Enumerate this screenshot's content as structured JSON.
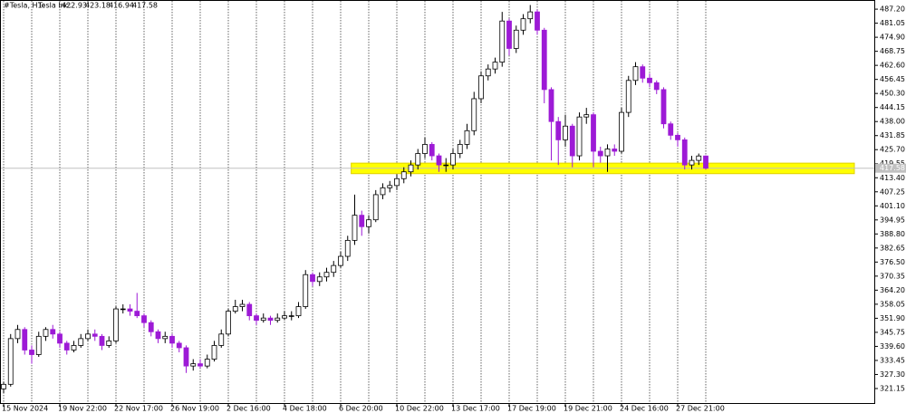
{
  "chart_data": {
    "type": "candlestick",
    "title": "#Tesla, H1:",
    "subtitle": "Tesla Inc.",
    "up_color": "#ffffff",
    "up_edge_color": "#000000",
    "down_color": "#9d1ad6",
    "price_line_color": "#c0c0c0",
    "zone_color": "#ffff00",
    "zone": [
      415.2,
      419.8
    ],
    "ylim": [
      314.8,
      491.2
    ],
    "yticks": [
      {
        "value": 487.2,
        "label": "487.20"
      },
      481.05,
      {
        "value": 474.9,
        "label": "474.90"
      },
      468.75,
      {
        "value": 462.6,
        "label": "462.60"
      },
      456.45,
      {
        "value": 450.3,
        "label": "450.30"
      },
      444.15,
      {
        "value": 438,
        "label": "438.00"
      },
      431.85,
      {
        "value": 425.7,
        "label": "425.70"
      },
      419.55,
      {
        "value": 413.4,
        "label": "413.40"
      },
      407.25,
      {
        "value": 401.1,
        "label": "401.10"
      },
      394.95,
      {
        "value": 388.8,
        "label": "388.80"
      },
      382.65,
      {
        "value": 376.5,
        "label": "376.50"
      },
      370.35,
      {
        "value": 364.2,
        "label": "364.20"
      },
      358.05,
      {
        "value": 351.9,
        "label": "351.90"
      },
      345.75,
      {
        "value": 339.6,
        "label": "339.60"
      },
      333.45,
      {
        "value": 327.3,
        "label": "327.30"
      },
      321.15
    ],
    "categories": [
      "15 Nov 2024",
      null,
      null,
      null,
      null,
      null,
      null,
      null,
      "19 Nov 22:00",
      null,
      null,
      null,
      null,
      null,
      null,
      null,
      "22 Nov 17:00",
      null,
      null,
      null,
      null,
      null,
      null,
      null,
      "26 Nov 19:00",
      null,
      null,
      null,
      null,
      null,
      null,
      null,
      "2 Dec 16:00",
      null,
      null,
      null,
      null,
      null,
      null,
      null,
      "4 Dec 18:00",
      null,
      null,
      null,
      null,
      null,
      null,
      null,
      "6 Dec 20:00",
      null,
      null,
      null,
      null,
      null,
      null,
      null,
      "10 Dec 22:00",
      null,
      null,
      null,
      null,
      null,
      null,
      null,
      "13 Dec 17:00",
      null,
      null,
      null,
      null,
      null,
      null,
      null,
      "17 Dec 19:00",
      null,
      null,
      null,
      null,
      null,
      null,
      null,
      "19 Dec 21:00",
      null,
      null,
      null,
      null,
      null,
      null,
      null,
      "24 Dec 16:00",
      null,
      null,
      null,
      null,
      null,
      null,
      null,
      "27 Dec 21:00",
      null,
      null,
      null,
      null
    ],
    "open": [
      321,
      323,
      343,
      347,
      338,
      336,
      344,
      347,
      345,
      341,
      338,
      340,
      343,
      345,
      344,
      340,
      342,
      356,
      356,
      355,
      353,
      350,
      346,
      343,
      344,
      341,
      339,
      331,
      332,
      331,
      334,
      340,
      345,
      355,
      357,
      358,
      353,
      351,
      352,
      351,
      352,
      353,
      353,
      357,
      371,
      368,
      370,
      372,
      375,
      379,
      386,
      397,
      392,
      395,
      406,
      409,
      410,
      413,
      416,
      419,
      424,
      428,
      423,
      419,
      419,
      424,
      428,
      434,
      448,
      458,
      461,
      464,
      482,
      470,
      478,
      483,
      486,
      478,
      452,
      438,
      430,
      436,
      423,
      440,
      441,
      425,
      423,
      426,
      425,
      442,
      456,
      462,
      457,
      455,
      452,
      437,
      432,
      430,
      419,
      421,
      422.93
    ],
    "high": [
      324,
      345,
      349,
      348,
      340,
      346,
      348,
      349,
      346,
      342,
      342,
      345,
      347,
      347,
      345,
      344,
      357,
      358,
      358,
      363,
      354,
      351,
      347,
      346,
      345,
      342,
      340,
      334,
      334,
      336,
      342,
      347,
      356,
      360,
      360,
      359,
      354,
      354,
      353,
      354,
      355,
      355,
      359,
      373,
      372,
      372,
      374,
      377,
      381,
      388,
      406,
      399,
      397,
      408,
      411,
      412,
      415,
      418,
      421,
      426,
      431,
      429,
      424,
      422,
      426,
      430,
      437,
      451,
      460,
      463,
      466,
      486,
      483,
      480,
      485,
      489,
      487,
      479,
      453,
      440,
      441,
      437,
      442,
      444,
      442,
      427,
      428,
      428,
      444,
      458,
      464,
      463,
      459,
      456,
      453,
      438,
      433,
      431,
      423,
      424,
      423.18
    ],
    "low": [
      319,
      322,
      341,
      336,
      332,
      335,
      342,
      343,
      339,
      336,
      337,
      339,
      342,
      342,
      338,
      339,
      341,
      354,
      353,
      352,
      348,
      344,
      341,
      341,
      339,
      337,
      328,
      329,
      330,
      330,
      333,
      339,
      344,
      354,
      355,
      351,
      349,
      350,
      349,
      350,
      351,
      351,
      352,
      356,
      366,
      366,
      368,
      370,
      374,
      377,
      384,
      388,
      389,
      394,
      404,
      407,
      408,
      411,
      414,
      417,
      422,
      421,
      416,
      416,
      417,
      422,
      426,
      432,
      446,
      456,
      459,
      462,
      467,
      468,
      476,
      481,
      476,
      446,
      421,
      419,
      427,
      418,
      421,
      437,
      418,
      420,
      416,
      423,
      424,
      440,
      454,
      455,
      453,
      450,
      435,
      430,
      427,
      417,
      417,
      419,
      416.94
    ],
    "close": [
      323,
      343,
      347,
      338,
      336,
      344,
      347,
      345,
      341,
      338,
      340,
      343,
      345,
      344,
      340,
      342,
      356,
      356,
      355,
      353,
      350,
      346,
      343,
      344,
      341,
      339,
      331,
      332,
      331,
      334,
      340,
      345,
      355,
      357,
      358,
      353,
      351,
      352,
      351,
      352,
      353,
      353,
      357,
      371,
      368,
      370,
      372,
      375,
      379,
      386,
      397,
      392,
      395,
      406,
      409,
      410,
      413,
      416,
      419,
      424,
      428,
      423,
      419,
      419,
      424,
      428,
      434,
      448,
      458,
      461,
      464,
      482,
      470,
      478,
      483,
      486,
      478,
      452,
      438,
      430,
      436,
      423,
      440,
      441,
      425,
      423,
      426,
      425,
      442,
      456,
      462,
      457,
      455,
      452,
      437,
      432,
      430,
      419,
      421,
      422.93,
      417.58
    ]
  }
}
